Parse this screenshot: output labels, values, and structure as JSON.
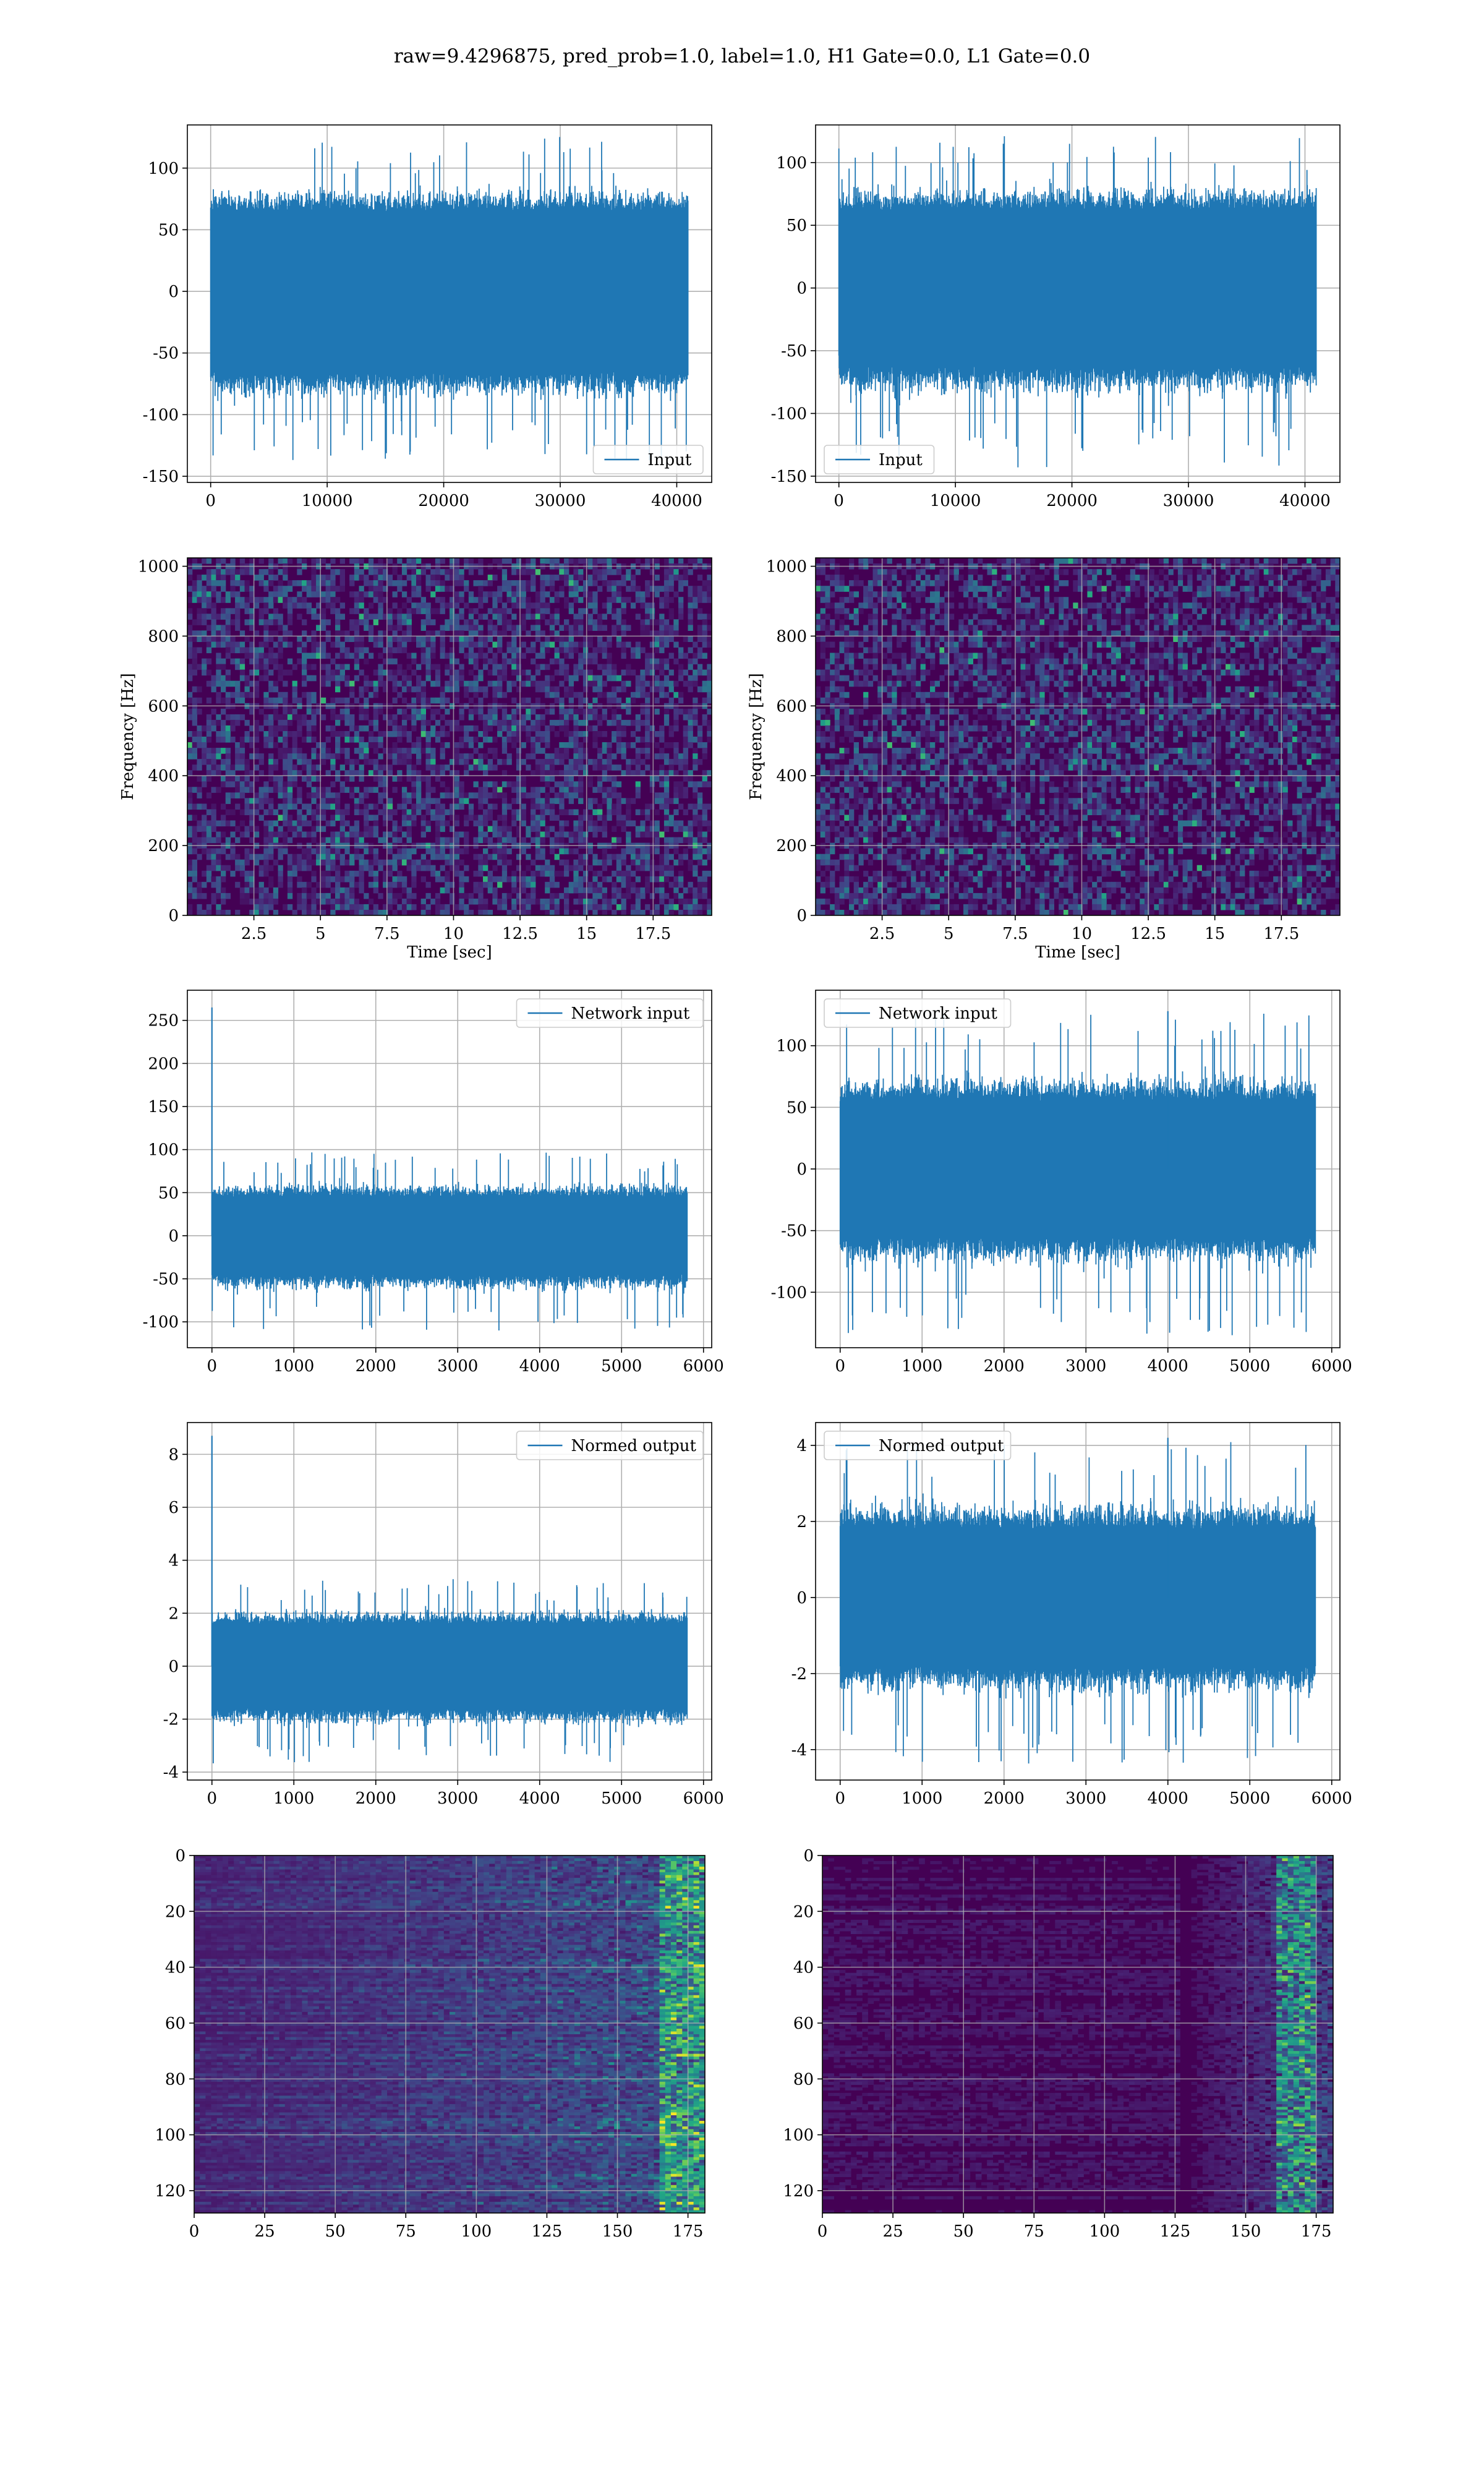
{
  "title": "raw=9.4296875, pred_prob=1.0, label=1.0, H1 Gate=0.0, L1 Gate=0.0",
  "colors": {
    "line": "#1f77b4",
    "grid": "#b0b0b0",
    "heat_low": "#440154",
    "heat_mid": "#21918c",
    "heat_high": "#fde725"
  },
  "chart_data": [
    {
      "id": "input-h1",
      "type": "line",
      "legend": "Input",
      "legend_position": "lower right",
      "xlim": [
        -2000,
        43000
      ],
      "ylim": [
        -155,
        135
      ],
      "xticks": [
        0,
        10000,
        20000,
        30000,
        40000
      ],
      "yticks": [
        -150,
        -100,
        -50,
        0,
        50,
        100
      ],
      "x_extent": [
        0,
        40960
      ],
      "noise": {
        "band": [
          -65,
          65
        ],
        "spike_range": [
          -137,
          127
        ]
      },
      "grid": true
    },
    {
      "id": "input-l1",
      "type": "line",
      "legend": "Input",
      "legend_position": "lower left",
      "xlim": [
        -2000,
        43000
      ],
      "ylim": [
        -155,
        130
      ],
      "xticks": [
        0,
        10000,
        20000,
        30000,
        40000
      ],
      "yticks": [
        -150,
        -100,
        -50,
        0,
        50,
        100
      ],
      "x_extent": [
        0,
        40960
      ],
      "noise": {
        "band": [
          -62,
          62
        ],
        "spike_range": [
          -143,
          125
        ]
      },
      "grid": true
    },
    {
      "id": "spectrogram-h1",
      "type": "heatmap",
      "xlabel": "Time [sec]",
      "ylabel": "Frequency [Hz]",
      "xlim": [
        0,
        19.7
      ],
      "ylim": [
        0,
        1024
      ],
      "xticks": [
        2.5,
        5.0,
        7.5,
        10.0,
        12.5,
        15.0,
        17.5
      ],
      "yticks": [
        0,
        200,
        400,
        600,
        800,
        1000
      ],
      "grid": true
    },
    {
      "id": "spectrogram-l1",
      "type": "heatmap",
      "xlabel": "Time [sec]",
      "ylabel": "Frequency [Hz]",
      "xlim": [
        0,
        19.7
      ],
      "ylim": [
        0,
        1024
      ],
      "xticks": [
        2.5,
        5.0,
        7.5,
        10.0,
        12.5,
        15.0,
        17.5
      ],
      "yticks": [
        0,
        200,
        400,
        600,
        800,
        1000
      ],
      "grid": true
    },
    {
      "id": "network-input-h1",
      "type": "line",
      "legend": "Network input",
      "legend_position": "upper right",
      "xlim": [
        -300,
        6100
      ],
      "ylim": [
        -130,
        285
      ],
      "xticks": [
        0,
        1000,
        2000,
        3000,
        4000,
        5000,
        6000
      ],
      "yticks": [
        -100,
        -50,
        0,
        50,
        100,
        150,
        200,
        250
      ],
      "x_extent": [
        0,
        5800
      ],
      "noise": {
        "band": [
          -45,
          45
        ],
        "spike_range": [
          -110,
          97
        ]
      },
      "spike": {
        "x": 0,
        "y": 265
      },
      "grid": true
    },
    {
      "id": "network-input-l1",
      "type": "line",
      "legend": "Network input",
      "legend_position": "upper left",
      "xlim": [
        -300,
        6100
      ],
      "ylim": [
        -145,
        145
      ],
      "xticks": [
        0,
        1000,
        2000,
        3000,
        4000,
        5000,
        6000
      ],
      "yticks": [
        -100,
        -50,
        0,
        50,
        100
      ],
      "x_extent": [
        0,
        5800
      ],
      "noise": {
        "band": [
          -55,
          55
        ],
        "spike_range": [
          -135,
          128
        ]
      },
      "spike": {
        "x": 4000,
        "y": 128
      },
      "grid": true
    },
    {
      "id": "normed-output-h1",
      "type": "line",
      "legend": "Normed output",
      "legend_position": "upper right",
      "xlim": [
        -300,
        6100
      ],
      "ylim": [
        -4.3,
        9.2
      ],
      "xticks": [
        0,
        1000,
        2000,
        3000,
        4000,
        5000,
        6000
      ],
      "yticks": [
        -4,
        -2,
        0,
        2,
        4,
        6,
        8
      ],
      "x_extent": [
        0,
        5800
      ],
      "noise": {
        "band": [
          -1.6,
          1.6
        ],
        "spike_range": [
          -3.7,
          3.3
        ]
      },
      "spike": {
        "x": 0,
        "y": 8.7
      },
      "grid": true
    },
    {
      "id": "normed-output-l1",
      "type": "line",
      "legend": "Normed output",
      "legend_position": "upper left",
      "xlim": [
        -300,
        6100
      ],
      "ylim": [
        -4.8,
        4.6
      ],
      "xticks": [
        0,
        1000,
        2000,
        3000,
        4000,
        5000,
        6000
      ],
      "yticks": [
        -4,
        -2,
        0,
        2,
        4
      ],
      "x_extent": [
        0,
        5800
      ],
      "noise": {
        "band": [
          -1.8,
          1.8
        ],
        "spike_range": [
          -4.4,
          4.2
        ]
      },
      "spike": {
        "x": 4000,
        "y": 4.2
      },
      "grid": true
    },
    {
      "id": "feature-map-h1",
      "type": "heatmap",
      "xlim": [
        0,
        181
      ],
      "ylim": [
        128,
        0
      ],
      "xticks": [
        0,
        25,
        50,
        75,
        100,
        125,
        150,
        175
      ],
      "yticks": [
        0,
        20,
        40,
        60,
        80,
        100,
        120
      ],
      "grid": true
    },
    {
      "id": "feature-map-l1",
      "type": "heatmap",
      "xlim": [
        0,
        181
      ],
      "ylim": [
        128,
        0
      ],
      "xticks": [
        0,
        25,
        50,
        75,
        100,
        125,
        150,
        175
      ],
      "yticks": [
        0,
        20,
        40,
        60,
        80,
        100,
        120
      ],
      "grid": true
    }
  ]
}
